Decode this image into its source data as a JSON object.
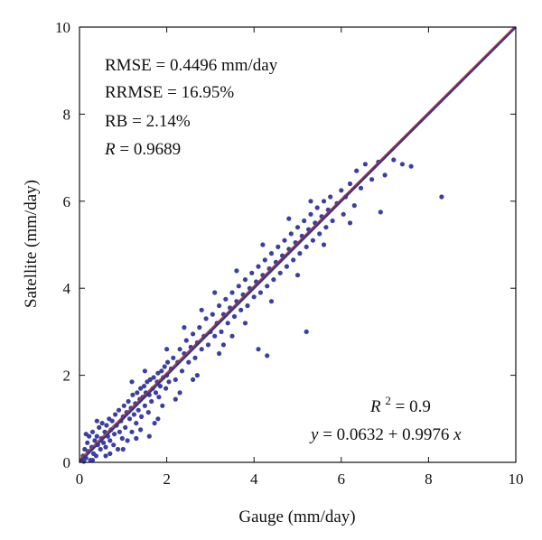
{
  "chart_data": {
    "type": "scatter",
    "xlabel": "Gauge (mm/day)",
    "ylabel": "Satellite (mm/day)",
    "xlim": [
      0,
      10
    ],
    "ylim": [
      0,
      10
    ],
    "xticks": [
      "0",
      "2",
      "4",
      "6",
      "8",
      "10"
    ],
    "yticks": [
      "0",
      "2",
      "4",
      "6",
      "8",
      "10"
    ],
    "grid": false,
    "colors": {
      "points": "#3b3fa0",
      "fit_line": "#b03040",
      "one_to_one": "#2a3a8a"
    },
    "stats": {
      "rmse": {
        "label": "RMSE",
        "value": "0.4496 mm/day"
      },
      "rrmse": {
        "label": "RRMSE",
        "value": "16.95%"
      },
      "rb": {
        "label": "RB",
        "value": "2.14%"
      },
      "r": {
        "label": "R",
        "value": "0.9689"
      },
      "r2": {
        "label": "R",
        "sup": "2",
        "value": "0.9"
      },
      "equation": {
        "lhs": "y",
        "intercept": "0.0632",
        "slope": "0.9976",
        "var": "x"
      }
    },
    "fit": {
      "intercept": 0.0632,
      "slope": 0.9976
    },
    "points": [
      [
        0.05,
        0.05
      ],
      [
        0.08,
        0.15
      ],
      [
        0.1,
        0.02
      ],
      [
        0.12,
        0.3
      ],
      [
        0.15,
        0.1
      ],
      [
        0.18,
        0.45
      ],
      [
        0.2,
        0.25
      ],
      [
        0.22,
        0.6
      ],
      [
        0.25,
        0.05
      ],
      [
        0.28,
        0.35
      ],
      [
        0.3,
        0.7
      ],
      [
        0.32,
        0.2
      ],
      [
        0.35,
        0.5
      ],
      [
        0.38,
        0.15
      ],
      [
        0.4,
        0.6
      ],
      [
        0.42,
        0.4
      ],
      [
        0.45,
        0.8
      ],
      [
        0.48,
        0.3
      ],
      [
        0.5,
        0.55
      ],
      [
        0.52,
        0.9
      ],
      [
        0.55,
        0.45
      ],
      [
        0.58,
        0.7
      ],
      [
        0.6,
        0.35
      ],
      [
        0.62,
        0.85
      ],
      [
        0.65,
        0.6
      ],
      [
        0.68,
        1.0
      ],
      [
        0.7,
        0.5
      ],
      [
        0.72,
        0.75
      ],
      [
        0.75,
        0.95
      ],
      [
        0.78,
        0.4
      ],
      [
        0.8,
        0.65
      ],
      [
        0.82,
        1.1
      ],
      [
        0.85,
        0.85
      ],
      [
        0.88,
        0.3
      ],
      [
        0.9,
        1.2
      ],
      [
        0.92,
        0.7
      ],
      [
        0.95,
        0.95
      ],
      [
        0.98,
        0.55
      ],
      [
        1.0,
        1.05
      ],
      [
        1.02,
        1.3
      ],
      [
        1.05,
        0.8
      ],
      [
        1.08,
        1.15
      ],
      [
        1.1,
        0.5
      ],
      [
        1.12,
        1.4
      ],
      [
        1.15,
        1.0
      ],
      [
        1.18,
        1.25
      ],
      [
        1.2,
        0.7
      ],
      [
        1.22,
        1.55
      ],
      [
        1.25,
        1.1
      ],
      [
        1.28,
        1.35
      ],
      [
        1.3,
        0.9
      ],
      [
        1.32,
        1.6
      ],
      [
        1.35,
        1.2
      ],
      [
        1.38,
        1.45
      ],
      [
        1.4,
        1.7
      ],
      [
        1.42,
        1.05
      ],
      [
        1.45,
        1.5
      ],
      [
        1.48,
        1.75
      ],
      [
        1.5,
        1.3
      ],
      [
        1.52,
        1.6
      ],
      [
        1.55,
        1.85
      ],
      [
        1.58,
        1.15
      ],
      [
        1.6,
        1.55
      ],
      [
        1.62,
        1.9
      ],
      [
        1.65,
        1.4
      ],
      [
        1.68,
        1.7
      ],
      [
        1.7,
        1.95
      ],
      [
        1.72,
        0.9
      ],
      [
        1.75,
        1.6
      ],
      [
        1.78,
        1.85
      ],
      [
        1.8,
        2.05
      ],
      [
        1.82,
        1.5
      ],
      [
        1.85,
        1.75
      ],
      [
        1.88,
        2.1
      ],
      [
        1.9,
        1.3
      ],
      [
        1.92,
        1.95
      ],
      [
        1.95,
        2.2
      ],
      [
        1.98,
        1.7
      ],
      [
        2.0,
        2.0
      ],
      [
        2.02,
        2.3
      ],
      [
        2.05,
        1.85
      ],
      [
        2.1,
        2.15
      ],
      [
        2.15,
        2.4
      ],
      [
        2.2,
        1.9
      ],
      [
        2.25,
        2.3
      ],
      [
        2.3,
        2.6
      ],
      [
        2.35,
        2.1
      ],
      [
        2.4,
        2.5
      ],
      [
        2.45,
        2.8
      ],
      [
        2.5,
        2.3
      ],
      [
        2.55,
        2.65
      ],
      [
        2.6,
        2.95
      ],
      [
        2.65,
        2.4
      ],
      [
        2.7,
        2.75
      ],
      [
        2.75,
        3.1
      ],
      [
        2.8,
        2.6
      ],
      [
        2.85,
        2.9
      ],
      [
        2.9,
        3.3
      ],
      [
        2.95,
        2.7
      ],
      [
        3.0,
        3.0
      ],
      [
        3.05,
        3.4
      ],
      [
        3.1,
        2.9
      ],
      [
        3.15,
        3.2
      ],
      [
        3.2,
        3.6
      ],
      [
        3.25,
        3.0
      ],
      [
        3.3,
        3.4
      ],
      [
        3.35,
        3.75
      ],
      [
        3.4,
        3.2
      ],
      [
        3.45,
        3.55
      ],
      [
        3.5,
        3.9
      ],
      [
        3.55,
        3.35
      ],
      [
        3.6,
        3.7
      ],
      [
        3.65,
        4.05
      ],
      [
        3.7,
        3.5
      ],
      [
        3.75,
        3.85
      ],
      [
        3.8,
        4.2
      ],
      [
        3.85,
        3.6
      ],
      [
        3.9,
        4.0
      ],
      [
        3.95,
        4.35
      ],
      [
        4.0,
        3.8
      ],
      [
        4.05,
        4.15
      ],
      [
        4.1,
        4.5
      ],
      [
        4.15,
        3.9
      ],
      [
        4.2,
        4.3
      ],
      [
        4.25,
        4.65
      ],
      [
        4.3,
        4.05
      ],
      [
        4.35,
        4.45
      ],
      [
        4.4,
        4.8
      ],
      [
        4.45,
        4.2
      ],
      [
        4.5,
        4.6
      ],
      [
        4.55,
        4.95
      ],
      [
        4.6,
        4.35
      ],
      [
        4.65,
        4.75
      ],
      [
        4.7,
        5.1
      ],
      [
        4.75,
        4.5
      ],
      [
        4.8,
        4.9
      ],
      [
        4.85,
        5.25
      ],
      [
        4.9,
        4.65
      ],
      [
        4.95,
        5.05
      ],
      [
        5.0,
        5.4
      ],
      [
        5.05,
        4.8
      ],
      [
        5.1,
        5.2
      ],
      [
        5.15,
        5.55
      ],
      [
        5.2,
        4.95
      ],
      [
        5.25,
        5.35
      ],
      [
        5.3,
        5.7
      ],
      [
        5.35,
        5.1
      ],
      [
        5.4,
        5.5
      ],
      [
        5.45,
        5.85
      ],
      [
        5.5,
        5.25
      ],
      [
        5.55,
        5.65
      ],
      [
        5.6,
        6.0
      ],
      [
        5.65,
        5.4
      ],
      [
        5.7,
        5.8
      ],
      [
        5.75,
        6.1
      ],
      [
        5.8,
        5.55
      ],
      [
        5.9,
        5.95
      ],
      [
        6.0,
        6.25
      ],
      [
        6.05,
        5.7
      ],
      [
        6.1,
        6.1
      ],
      [
        6.2,
        6.4
      ],
      [
        6.3,
        5.9
      ],
      [
        6.35,
        6.7
      ],
      [
        6.45,
        6.3
      ],
      [
        6.55,
        6.85
      ],
      [
        6.7,
        6.5
      ],
      [
        6.85,
        6.9
      ],
      [
        7.0,
        6.6
      ],
      [
        7.2,
        6.95
      ],
      [
        7.4,
        6.85
      ],
      [
        7.6,
        6.8
      ],
      [
        8.3,
        6.1
      ],
      [
        5.2,
        3.0
      ],
      [
        4.1,
        2.6
      ],
      [
        4.3,
        2.45
      ],
      [
        6.9,
        5.75
      ],
      [
        1.6,
        0.6
      ],
      [
        1.4,
        0.75
      ],
      [
        2.3,
        1.6
      ],
      [
        2.6,
        1.9
      ],
      [
        3.2,
        2.5
      ],
      [
        3.5,
        2.9
      ],
      [
        0.3,
        0.05
      ],
      [
        0.6,
        0.15
      ],
      [
        1.0,
        0.3
      ],
      [
        1.8,
        1.0
      ],
      [
        0.15,
        0.65
      ],
      [
        0.4,
        0.95
      ],
      [
        1.2,
        1.85
      ],
      [
        1.5,
        2.1
      ],
      [
        2.0,
        2.6
      ],
      [
        2.4,
        3.1
      ],
      [
        2.8,
        3.5
      ],
      [
        3.1,
        3.9
      ],
      [
        3.6,
        4.4
      ],
      [
        4.2,
        5.0
      ],
      [
        4.8,
        5.6
      ],
      [
        5.3,
        6.0
      ],
      [
        0.7,
        0.2
      ],
      [
        1.3,
        0.55
      ],
      [
        2.2,
        1.45
      ],
      [
        2.7,
        2.0
      ],
      [
        3.3,
        2.7
      ],
      [
        3.8,
        3.2
      ],
      [
        4.4,
        3.7
      ],
      [
        5.0,
        4.3
      ],
      [
        5.6,
        5.0
      ],
      [
        6.2,
        5.5
      ]
    ]
  }
}
